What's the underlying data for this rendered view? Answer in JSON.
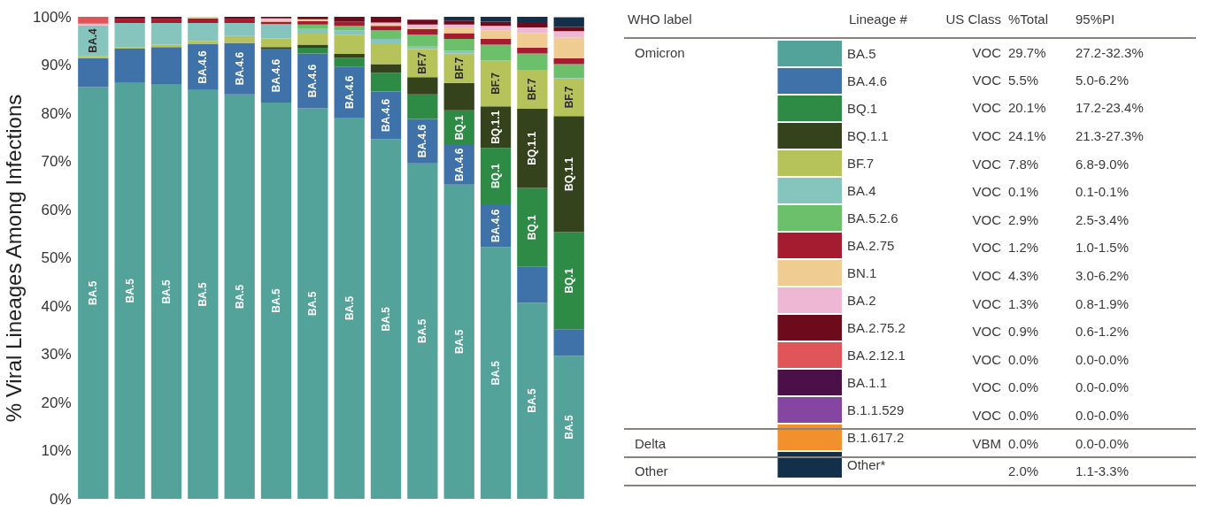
{
  "chart_data": {
    "type": "bar",
    "stacked": true,
    "ylabel": "% Viral Lineages Among Infections",
    "legend": "right",
    "legend_title": "Lineage #",
    "tick_labels": "y",
    "categories": [
      null,
      null,
      null,
      null,
      null,
      null,
      null,
      null,
      null,
      null,
      null,
      null,
      null,
      null
    ],
    "ylim": [
      0,
      100
    ],
    "yticks": [
      {
        "value": 0,
        "label": "0%"
      },
      {
        "value": 10,
        "label": "10%"
      },
      {
        "value": 20,
        "label": "20%"
      },
      {
        "value": 30,
        "label": "30%"
      },
      {
        "value": 40,
        "label": "40%"
      },
      {
        "value": 50,
        "label": "50%"
      },
      {
        "value": 60,
        "label": "60%"
      },
      {
        "value": 70,
        "label": "70%"
      },
      {
        "value": 80,
        "label": "80%"
      },
      {
        "value": 90,
        "label": "90%"
      },
      {
        "value": 100,
        "label": "100%"
      }
    ],
    "series": [
      {
        "name": "BA.5",
        "color": "#53a39b",
        "values": [
          85.4,
          86.3,
          85.9,
          84.8,
          83.9,
          82.2,
          81.0,
          79.1,
          74.6,
          69.6,
          65.2,
          52.2,
          40.7,
          29.7
        ]
      },
      {
        "name": "BA.4.6",
        "color": "#3f72a8",
        "values": [
          6.0,
          7.1,
          7.8,
          9.5,
          10.7,
          11.2,
          11.4,
          10.5,
          9.9,
          9.2,
          8.2,
          8.9,
          7.4,
          5.5
        ]
      },
      {
        "name": "BQ.1",
        "color": "#2e8b46",
        "values": [
          0,
          0,
          0,
          0,
          0,
          0,
          1.2,
          1.9,
          3.9,
          5.1,
          7.2,
          11.7,
          16.4,
          20.1
        ]
      },
      {
        "name": "BQ.1.1",
        "color": "#34431c",
        "values": [
          0,
          0,
          0,
          0,
          0,
          0.3,
          0.6,
          0.8,
          1.8,
          3.6,
          5.7,
          8.6,
          16.4,
          24.1
        ]
      },
      {
        "name": "BF.7",
        "color": "#b5c35a",
        "values": [
          0.5,
          0.3,
          0.5,
          0.7,
          1.4,
          1.8,
          2.3,
          4.0,
          4.3,
          5.8,
          6.1,
          9.5,
          8.1,
          7.8
        ]
      },
      {
        "name": "BA.4",
        "color": "#86c5bd",
        "values": [
          6.3,
          5.0,
          4.5,
          3.7,
          2.7,
          3.0,
          1.0,
          0.9,
          0.9,
          0.5,
          0.6,
          0,
          0,
          0.1
        ]
      },
      {
        "name": "BA.5.2.6",
        "color": "#6cc06b",
        "values": [
          0,
          0,
          0,
          0,
          0,
          0,
          0.9,
          0.9,
          1.8,
          2.5,
          2.4,
          3.3,
          3.4,
          2.9
        ]
      },
      {
        "name": "BA.2.75",
        "color": "#a51c30",
        "values": [
          0,
          0.8,
          0.8,
          1.0,
          0.8,
          0.5,
          0.7,
          0.9,
          0.9,
          1.2,
          1.2,
          1.2,
          1.2,
          1.2
        ]
      },
      {
        "name": "BN.1",
        "color": "#efcc92",
        "values": [
          0,
          0,
          0,
          0.3,
          0,
          0.3,
          0.4,
          0,
          0.3,
          0.3,
          1.2,
          1.8,
          3.0,
          4.3
        ]
      },
      {
        "name": "BA.2",
        "color": "#eeb8d4",
        "values": [
          0.4,
          0,
          0,
          0,
          0,
          0.4,
          0,
          0,
          0.4,
          0.6,
          0.6,
          0.9,
          1.2,
          1.3
        ]
      },
      {
        "name": "BA.2.75.2",
        "color": "#6d0a1c",
        "values": [
          0,
          0.5,
          0.5,
          0,
          0.5,
          0.3,
          0.5,
          1.0,
          1.2,
          1.0,
          0.8,
          0.9,
          0.9,
          0.9
        ]
      },
      {
        "name": "BA.2.12.1",
        "color": "#e05658",
        "values": [
          1.4,
          0,
          0,
          0,
          0,
          0,
          0,
          0,
          0,
          0,
          0,
          0,
          0,
          0
        ]
      },
      {
        "name": "BA.1.1",
        "color": "#4b1048",
        "values": [
          0,
          0,
          0,
          0,
          0,
          0,
          0,
          0,
          0,
          0,
          0,
          0,
          0,
          0
        ]
      },
      {
        "name": "B.1.1.529",
        "color": "#8446a0",
        "values": [
          0,
          0,
          0,
          0,
          0,
          0,
          0,
          0,
          0,
          0,
          0,
          0,
          0,
          0
        ]
      },
      {
        "name": "B.1.617.2",
        "color": "#f0912b",
        "values": [
          0,
          0,
          0,
          0,
          0,
          0,
          0,
          0,
          0,
          0,
          0,
          0,
          0,
          0
        ]
      },
      {
        "name": "Other*",
        "color": "#13304a",
        "values": [
          0,
          0,
          0,
          0,
          0,
          0,
          0,
          0,
          0,
          0,
          0.8,
          1.0,
          1.3,
          2.0
        ]
      }
    ],
    "annotations": [
      "WHO label",
      "US Class",
      "%Total",
      "95%PI",
      "Omicron",
      "Delta",
      "Other",
      "VOC",
      "VOC",
      "VOC",
      "VOC",
      "VOC",
      "VOC",
      "VOC",
      "VOC",
      "VOC",
      "VOC",
      "VOC",
      "VOC",
      "VOC",
      "VOC",
      "VBM",
      "29.7%",
      "5.5%",
      "20.1%",
      "24.1%",
      "7.8%",
      "0.1%",
      "2.9%",
      "1.2%",
      "4.3%",
      "1.3%",
      "0.9%",
      "0.0%",
      "0.0%",
      "0.0%",
      "0.0%",
      "2.0%",
      "27.2-32.3%",
      "5.0-6.2%",
      "17.2-23.4%",
      "21.3-27.3%",
      "6.8-9.0%",
      "0.1-0.1%",
      "2.5-3.4%",
      "1.0-1.5%",
      "3.0-6.2%",
      "0.8-1.9%",
      "0.6-1.2%",
      "0.0-0.0%",
      "0.0-0.0%",
      "0.0-0.0%",
      "0.0-0.0%",
      "1.1-3.3%"
    ]
  }
}
